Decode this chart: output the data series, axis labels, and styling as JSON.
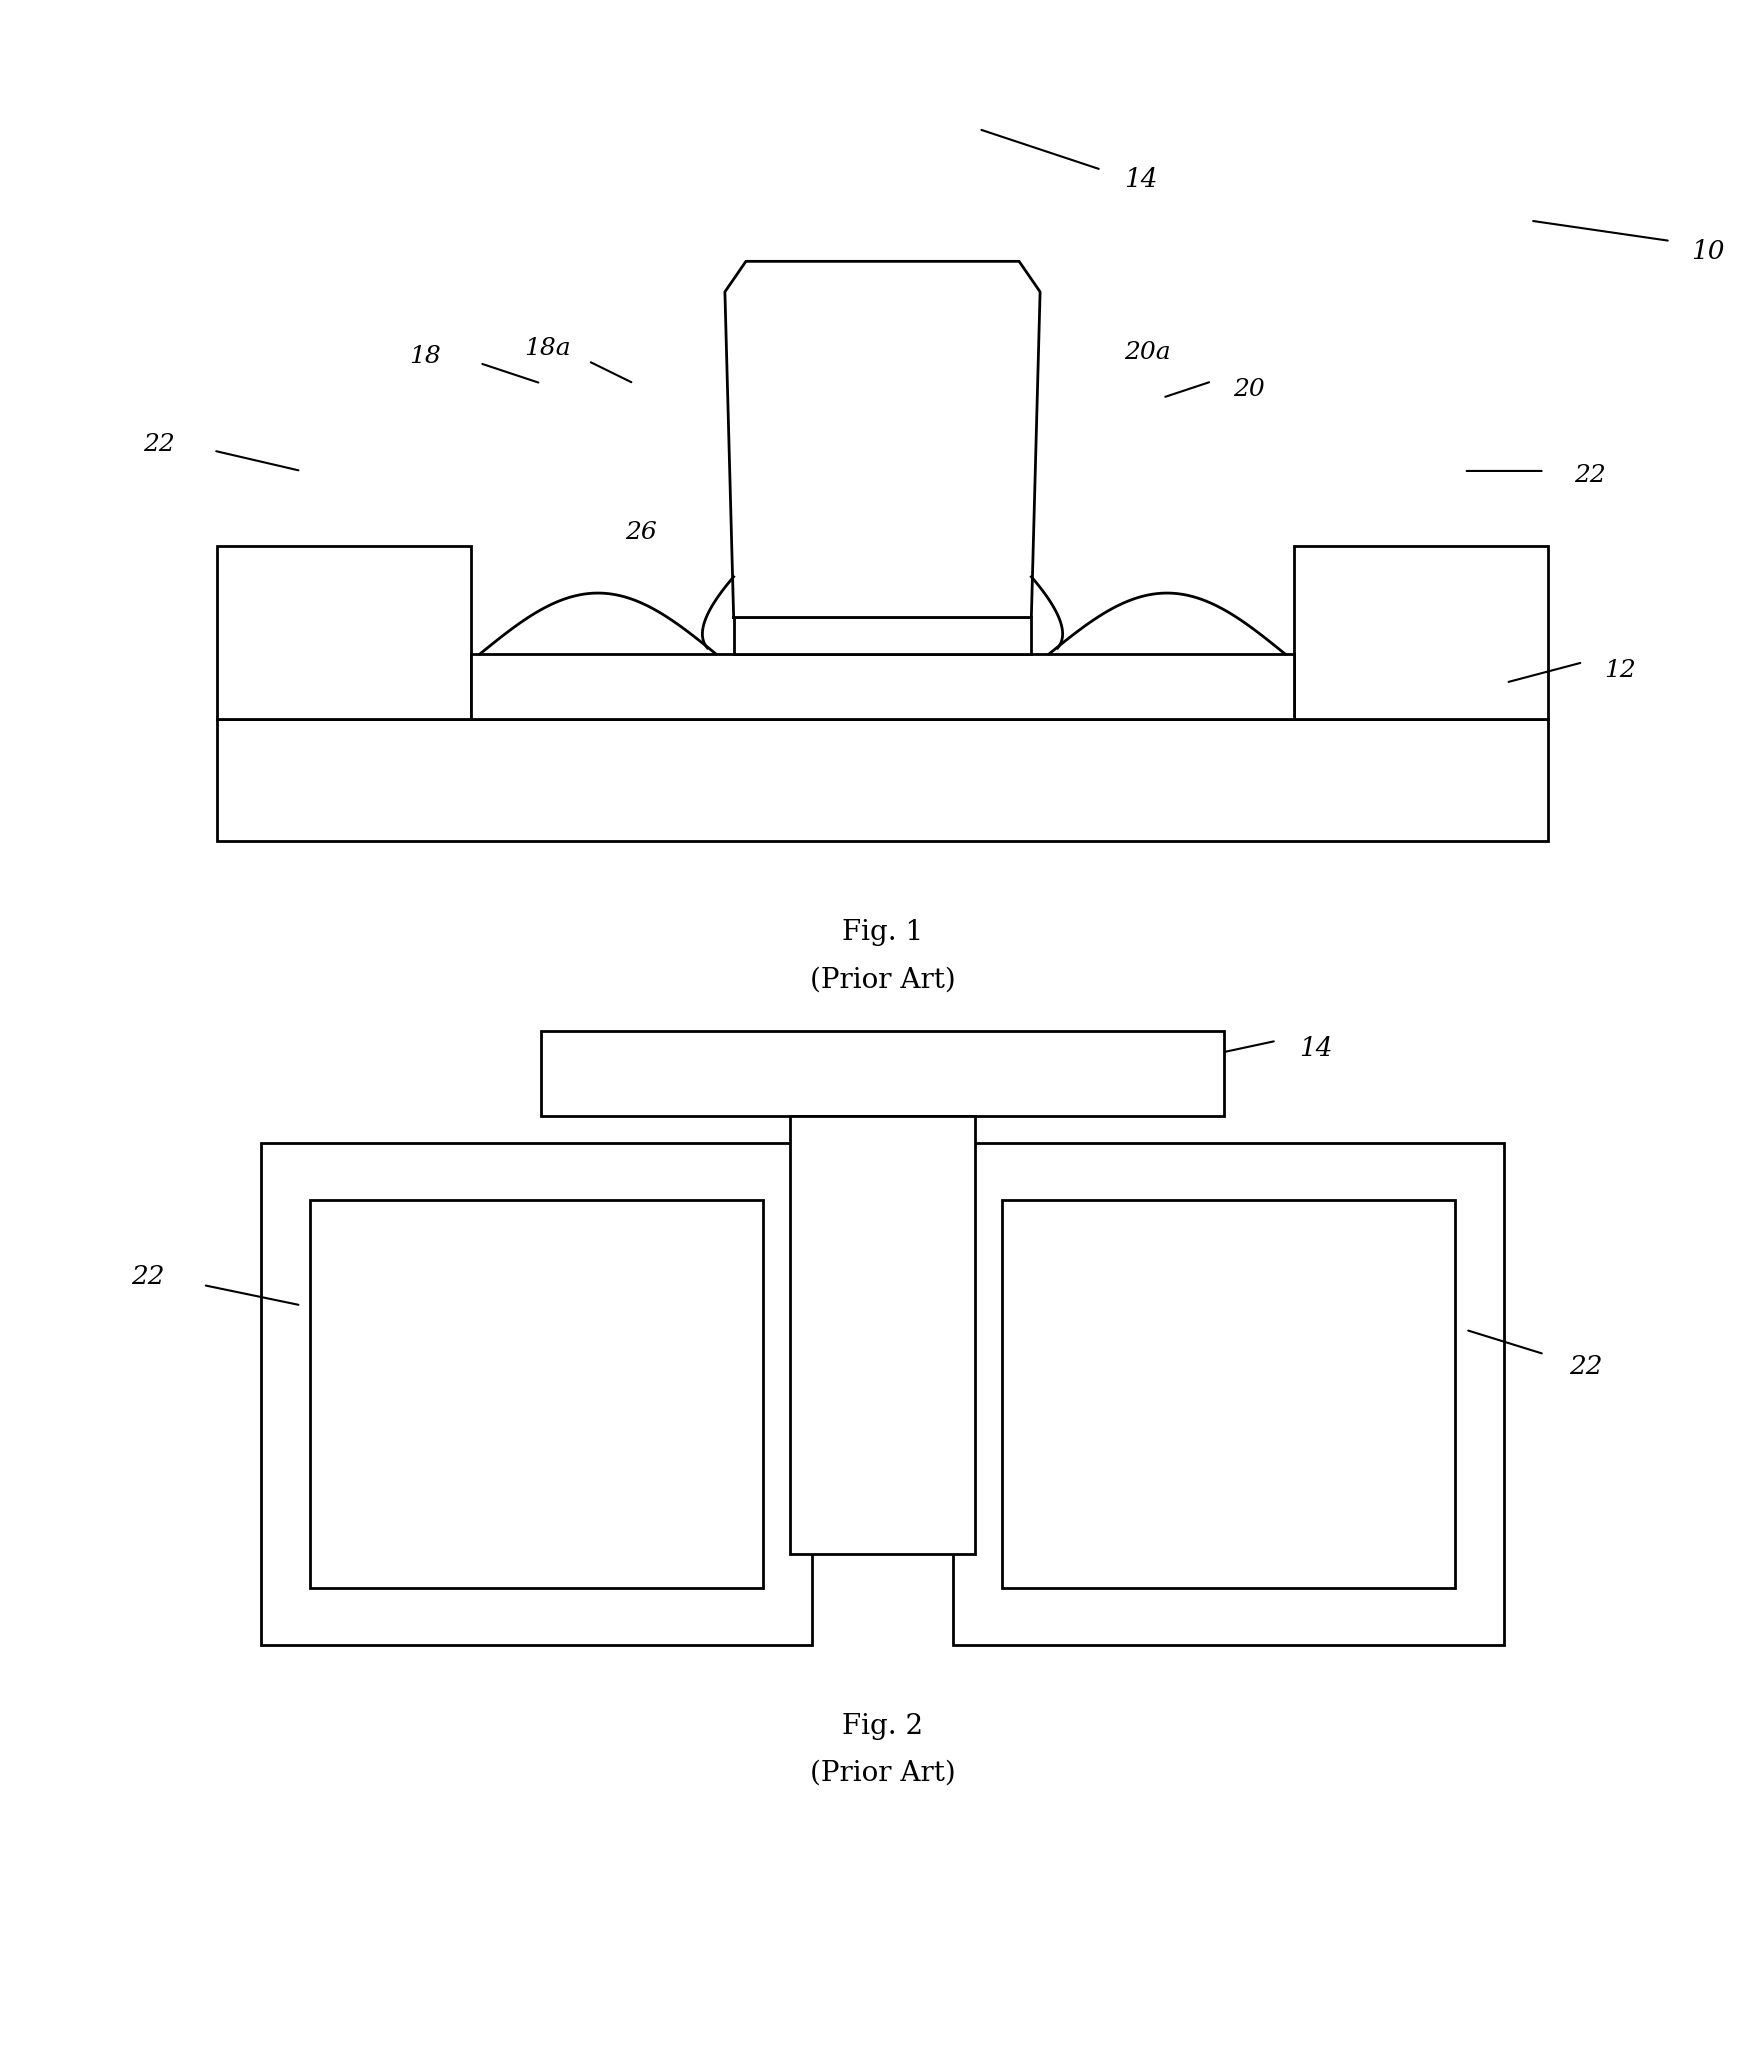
{
  "fig_width": 17.65,
  "fig_height": 20.49,
  "bg_color": "#ffffff",
  "line_color": "#000000",
  "lw": 2.0,
  "fig1_caption": "Fig. 1",
  "fig1_subcaption": "(Prior Art)",
  "fig2_caption": "Fig. 2",
  "fig2_subcaption": "(Prior Art)",
  "font_size": 18
}
